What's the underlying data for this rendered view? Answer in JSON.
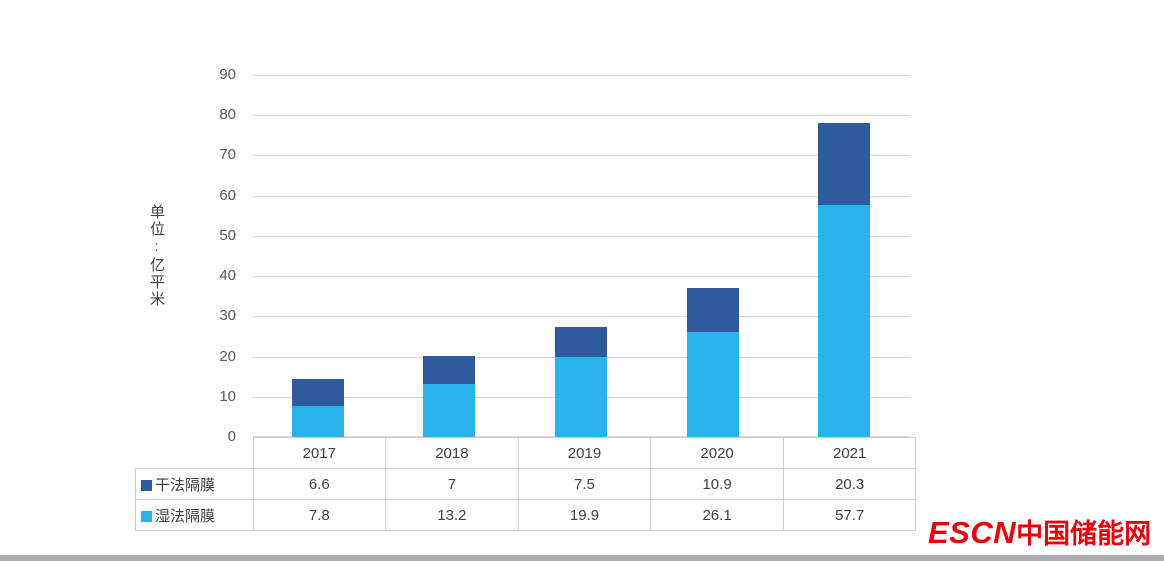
{
  "chart_data": {
    "type": "bar",
    "stacked": true,
    "title": "",
    "categories": [
      "2017",
      "2018",
      "2019",
      "2020",
      "2021"
    ],
    "series": [
      {
        "name": "干法隔膜",
        "values": [
          6.6,
          7,
          7.5,
          10.9,
          20.3
        ],
        "color": "#2e5b9e",
        "stack_order": "top"
      },
      {
        "name": "湿法隔膜",
        "values": [
          7.8,
          13.2,
          19.9,
          26.1,
          57.7
        ],
        "color": "#29b3ea",
        "stack_order": "bottom"
      }
    ],
    "ylabel": "单位:亿平米",
    "ylim": [
      0,
      90
    ],
    "ytick_step": 10,
    "grid": true,
    "gridline_color": "#d9d9d9",
    "legend_position": "table-rows-left"
  },
  "footer": {
    "logo_escn": "ESCN",
    "logo_site": "中国储能网",
    "logo_color": "#e8000d"
  }
}
